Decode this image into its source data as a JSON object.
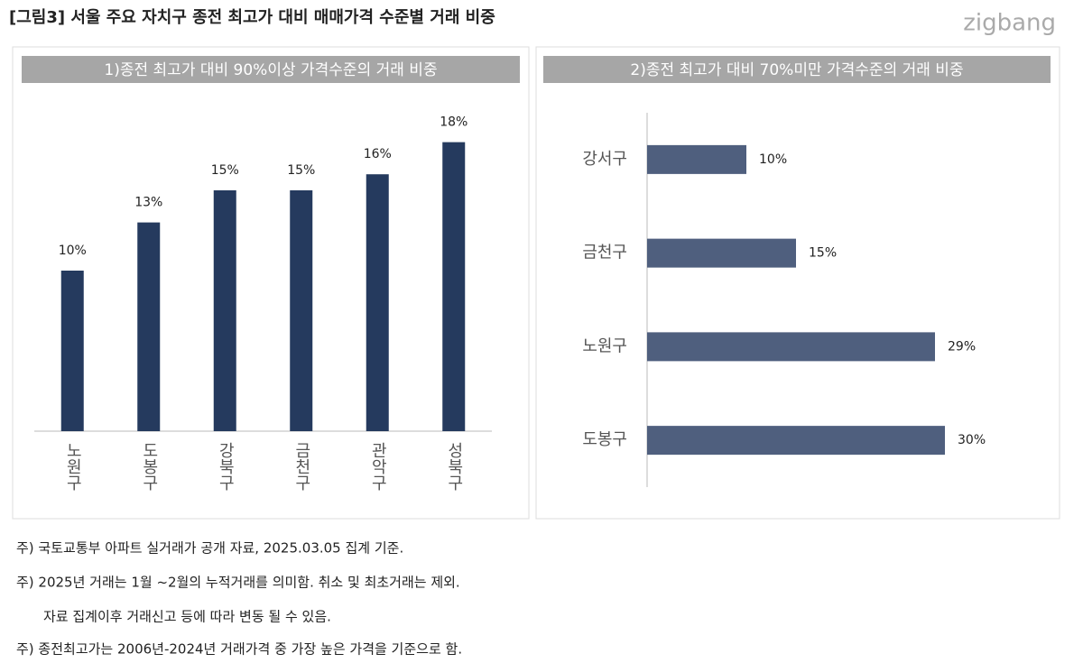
{
  "title": "[그림3] 서울 주요 자치구  종전 최고가 대비 매매가격 수준별 거래 비중",
  "logo": "zigbang",
  "chart_data": [
    {
      "type": "bar",
      "title": "1)종전 최고가 대비 90%이상 가격수준의 거래 비중",
      "categories": [
        "노원구",
        "도봉구",
        "강북구",
        "금천구",
        "관악구",
        "성북구"
      ],
      "values": [
        10,
        13,
        15,
        15,
        16,
        18
      ],
      "value_labels": [
        "10%",
        "13%",
        "15%",
        "15%",
        "16%",
        "18%"
      ],
      "color": "#253a5e",
      "ylim": [
        0,
        20
      ]
    },
    {
      "type": "barh",
      "title": "2)종전 최고가 대비 70%미만 가격수준의 거래 비중",
      "categories": [
        "강서구",
        "금천구",
        "노원구",
        "도봉구"
      ],
      "values": [
        10,
        15,
        29,
        30
      ],
      "value_labels": [
        "10%",
        "15%",
        "29%",
        "30%"
      ],
      "color": "#4f5f7e",
      "xlim": [
        0,
        40
      ]
    }
  ],
  "notes": [
    "주) 국토교통부 아파트 실거래가 공개 자료, 2025.03.05 집계 기준.",
    "주) 2025년 거래는 1월 ~2월의 누적거래를 의미함. 취소 및 최초거래는 제외.",
    "자료 집계이후 거래신고 등에 따라 변동 될 수 있음.",
    "주) 종전최고가는 2006년-2024년 거래가격 중 가장 높은 가격을 기준으로 함."
  ]
}
